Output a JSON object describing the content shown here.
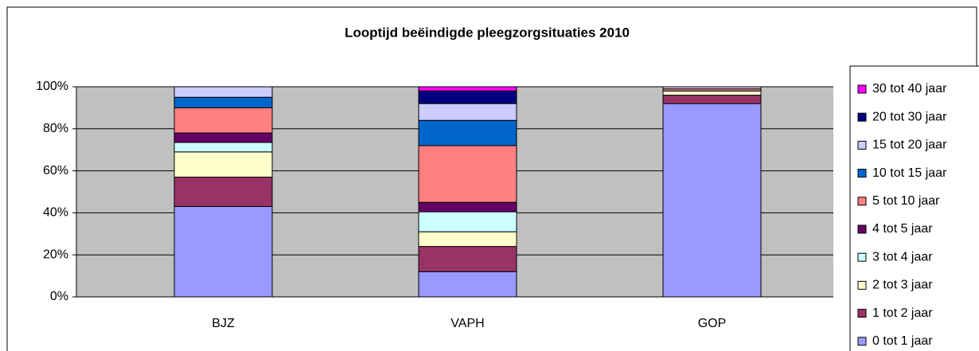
{
  "chart_data": {
    "type": "stacked_bar",
    "title": "Looptijd beëindigde pleegzorgsituaties 2010",
    "categories": [
      "BJZ",
      "VAPH",
      "GOP"
    ],
    "series": [
      {
        "name": "0 tot 1 jaar",
        "color": "#9999ff",
        "values": [
          43,
          12,
          92
        ]
      },
      {
        "name": "1 tot 2 jaar",
        "color": "#993366",
        "values": [
          14,
          12,
          4
        ]
      },
      {
        "name": "2 tot 3 jaar",
        "color": "#ffffcc",
        "values": [
          12,
          7,
          2
        ]
      },
      {
        "name": "3 tot 4 jaar",
        "color": "#ccffff",
        "values": [
          4.5,
          9.5,
          0
        ]
      },
      {
        "name": "4 tot 5 jaar",
        "color": "#660066",
        "values": [
          4.5,
          4.5,
          0
        ]
      },
      {
        "name": "5 tot 10 jaar",
        "color": "#ff8080",
        "values": [
          12,
          27,
          1
        ]
      },
      {
        "name": "10 tot 15 jaar",
        "color": "#0066cc",
        "values": [
          5,
          12,
          0
        ]
      },
      {
        "name": "15 tot 20 jaar",
        "color": "#ccccff",
        "values": [
          5,
          8,
          1
        ]
      },
      {
        "name": "20 tot 30 jaar",
        "color": "#000080",
        "values": [
          0,
          6,
          0
        ]
      },
      {
        "name": "30 tot 40 jaar",
        "color": "#ff00ff",
        "values": [
          0,
          2,
          0
        ]
      }
    ],
    "ylim": [
      0,
      100
    ],
    "yticks": [
      {
        "value": 0,
        "label": "0%"
      },
      {
        "value": 20,
        "label": "20%"
      },
      {
        "value": 40,
        "label": "40%"
      },
      {
        "value": 60,
        "label": "60%"
      },
      {
        "value": 80,
        "label": "80%"
      },
      {
        "value": 100,
        "label": "100%"
      }
    ],
    "grid": true,
    "legend": "right"
  }
}
